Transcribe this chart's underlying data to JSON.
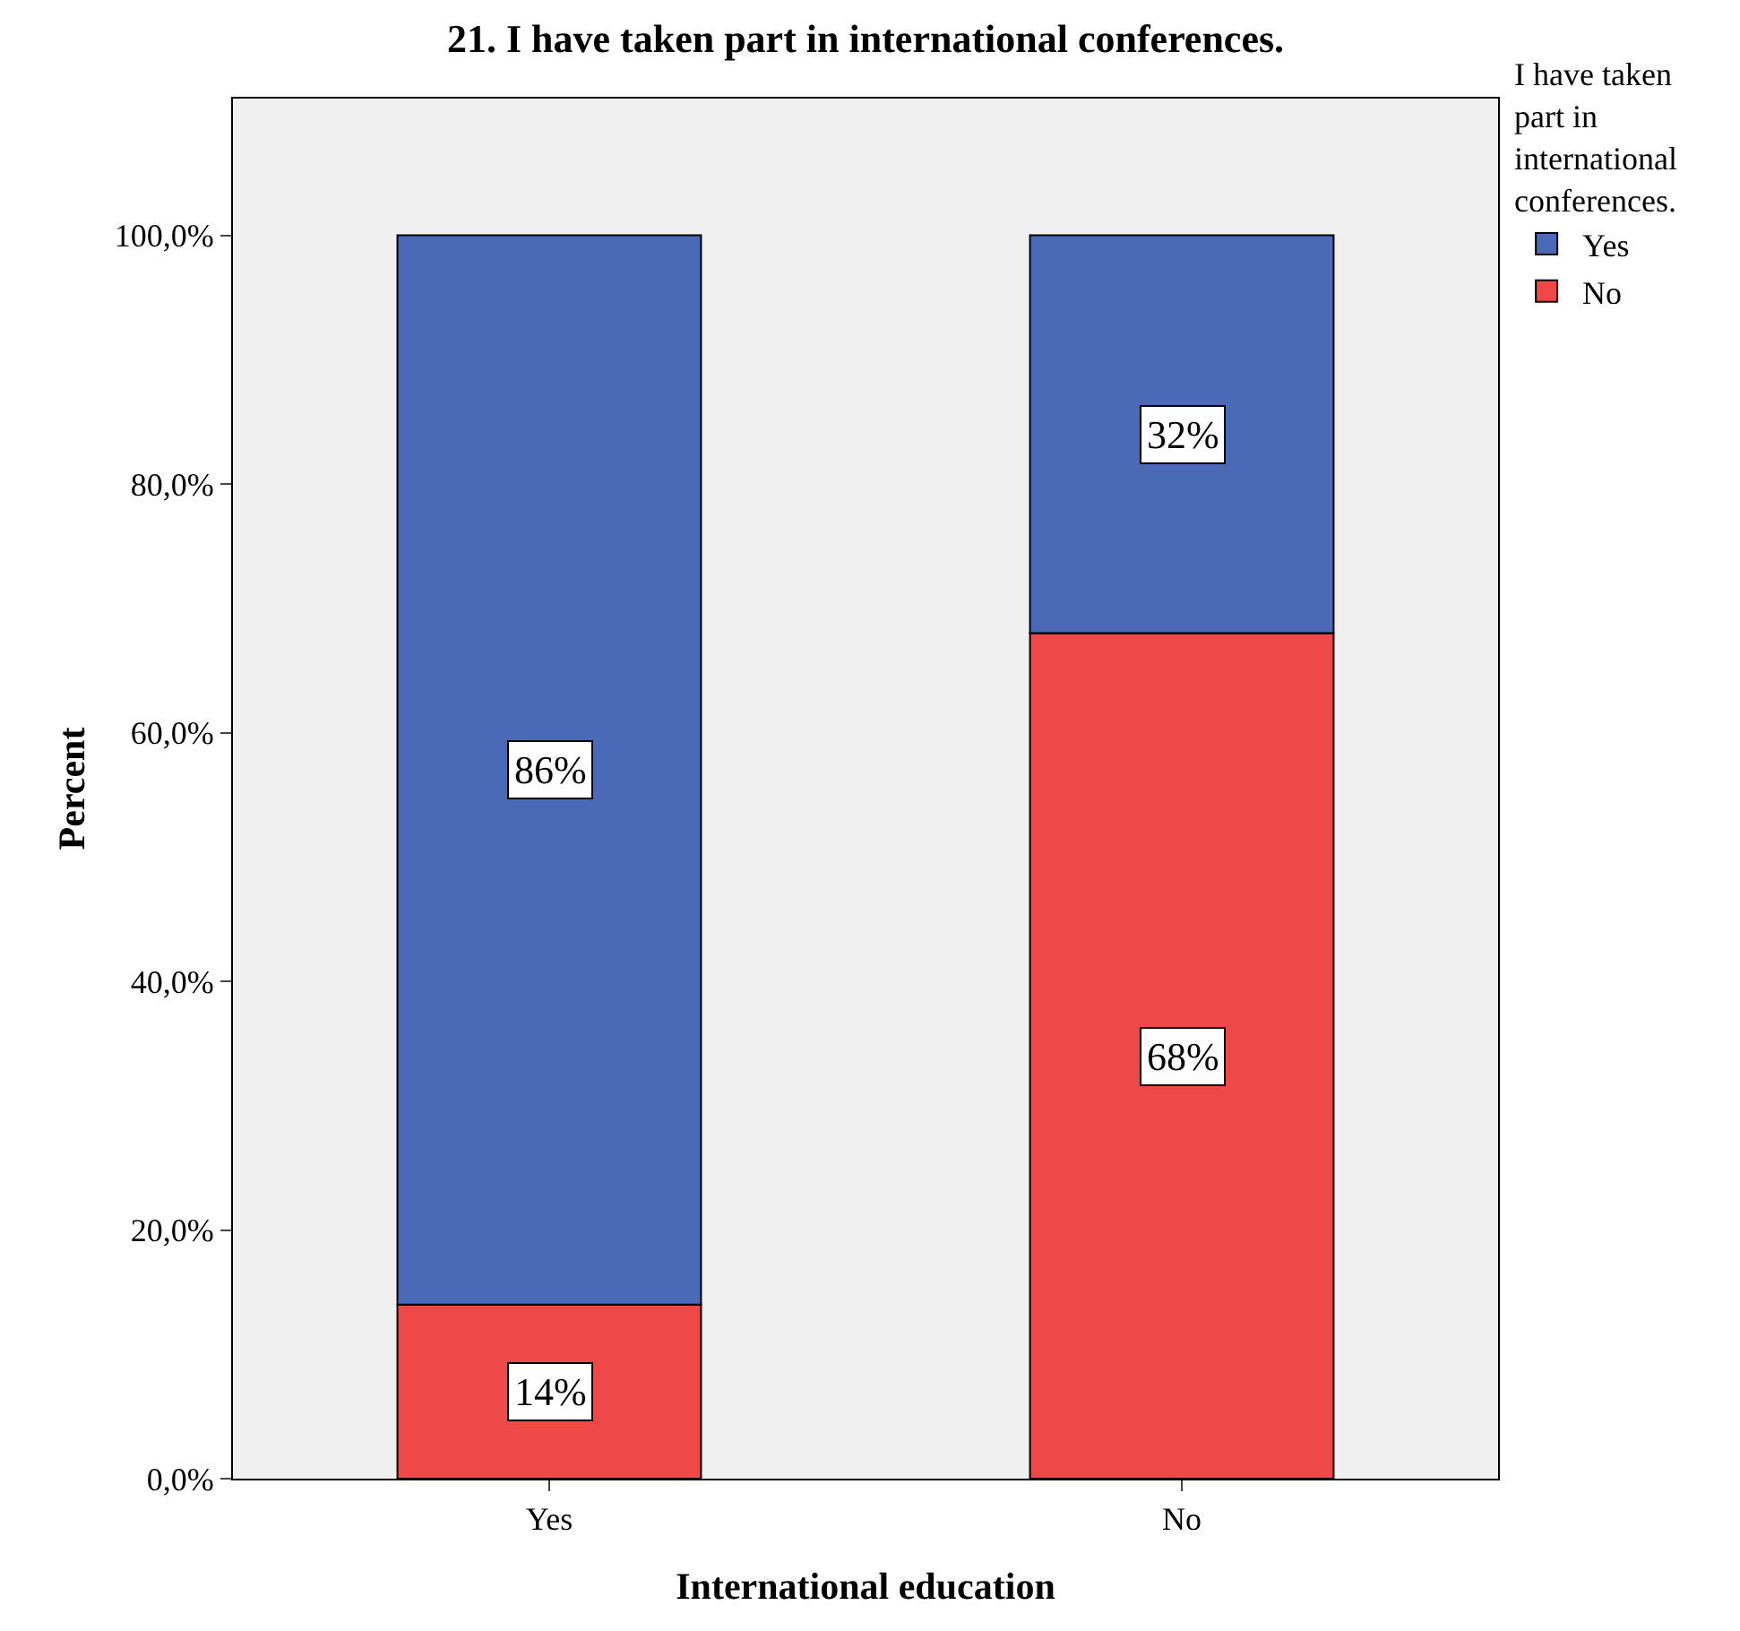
{
  "chart_data": {
    "type": "bar",
    "title": "21. I have taken part in international conferences.",
    "xlabel": "International education",
    "ylabel": "Percent",
    "legend_title": "I have taken part in international conferences.",
    "categories": [
      "Yes",
      "No"
    ],
    "stacked": true,
    "series": [
      {
        "name": "No",
        "color": "#ef4848",
        "values": [
          14,
          68
        ],
        "value_labels": [
          "14%",
          "68%"
        ]
      },
      {
        "name": "Yes",
        "color": "#4a6ab8",
        "values": [
          86,
          32
        ],
        "value_labels": [
          "86%",
          "32%"
        ]
      }
    ],
    "ylim": [
      0,
      111
    ],
    "yticks": [
      {
        "value": 0,
        "label": "0,0%"
      },
      {
        "value": 20,
        "label": "20,0%"
      },
      {
        "value": 40,
        "label": "40,0%"
      },
      {
        "value": 60,
        "label": "60,0%"
      },
      {
        "value": 80,
        "label": "80,0%"
      },
      {
        "value": 100,
        "label": "100,0%"
      }
    ],
    "grid": false,
    "legend": "top right"
  }
}
